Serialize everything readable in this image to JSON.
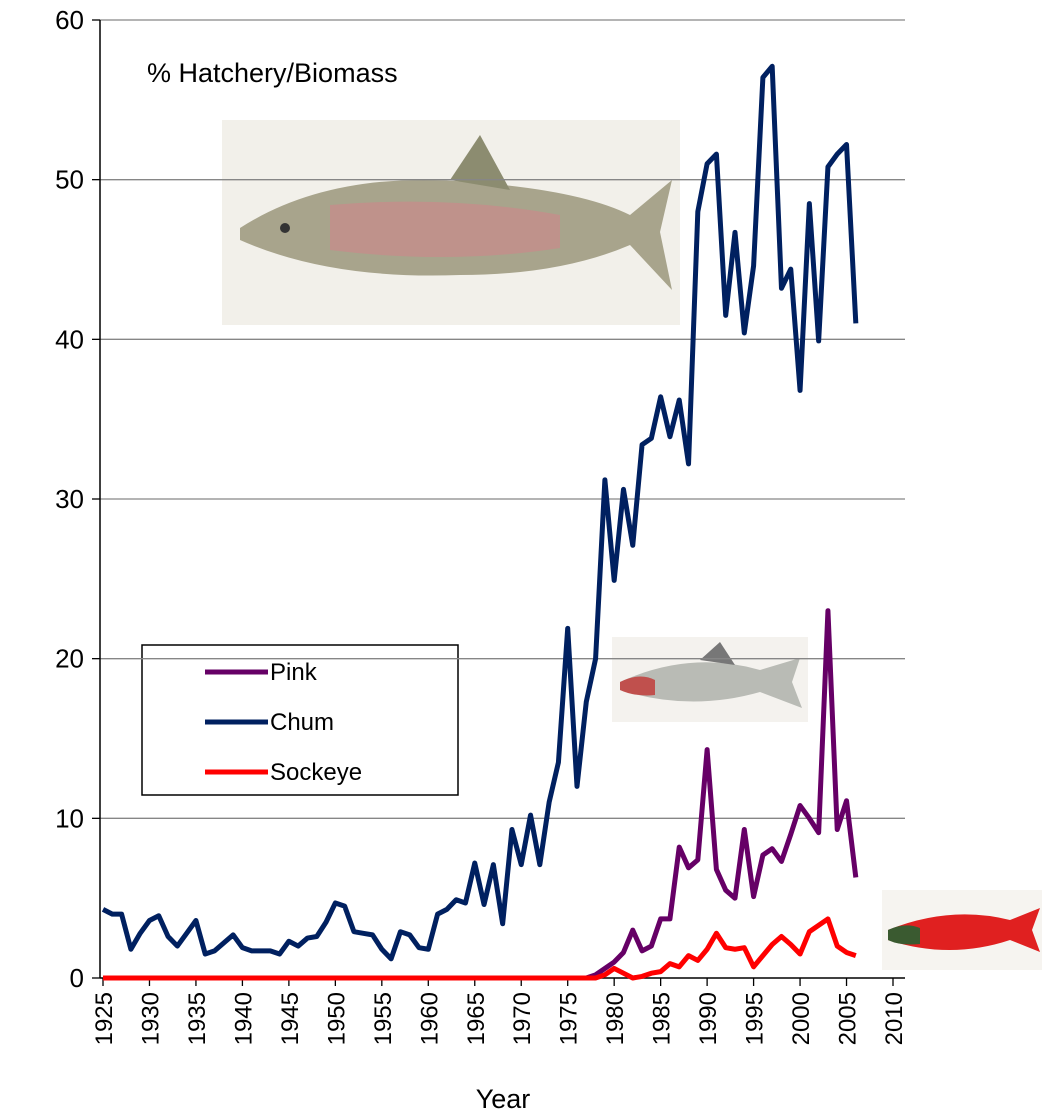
{
  "chart_data": {
    "type": "line",
    "annotation": "% Hatchery/Biomass",
    "x_label": "Year",
    "x": [
      1925,
      1926,
      1927,
      1928,
      1929,
      1930,
      1931,
      1932,
      1933,
      1934,
      1935,
      1936,
      1937,
      1938,
      1939,
      1940,
      1941,
      1942,
      1943,
      1944,
      1945,
      1946,
      1947,
      1948,
      1949,
      1950,
      1951,
      1952,
      1953,
      1954,
      1955,
      1956,
      1957,
      1958,
      1959,
      1960,
      1961,
      1962,
      1963,
      1964,
      1965,
      1966,
      1967,
      1968,
      1969,
      1970,
      1971,
      1972,
      1973,
      1974,
      1975,
      1976,
      1977,
      1978,
      1979,
      1980,
      1981,
      1982,
      1983,
      1984,
      1985,
      1986,
      1987,
      1988,
      1989,
      1990,
      1991,
      1992,
      1993,
      1994,
      1995,
      1996,
      1997,
      1998,
      1999,
      2000,
      2001,
      2002,
      2003,
      2004,
      2005,
      2006
    ],
    "series": [
      {
        "name": "Pink",
        "color": "#660066",
        "values": [
          0,
          0,
          0,
          0,
          0,
          0,
          0,
          0,
          0,
          0,
          0,
          0,
          0,
          0,
          0,
          0,
          0,
          0,
          0,
          0,
          0,
          0,
          0,
          0,
          0,
          0,
          0,
          0,
          0,
          0,
          0,
          0,
          0,
          0,
          0,
          0,
          0,
          0,
          0,
          0,
          0,
          0,
          0,
          0,
          0,
          0,
          0,
          0,
          0,
          0,
          0,
          0,
          0,
          0.2,
          0.6,
          1.0,
          1.6,
          3.0,
          1.7,
          2.0,
          3.7,
          3.7,
          8.2,
          6.9,
          7.4,
          14.3,
          6.8,
          5.5,
          5.0,
          9.3,
          5.1,
          7.7,
          8.1,
          7.3,
          9.0,
          10.8,
          10.0,
          9.1,
          23.0,
          9.3,
          11.1,
          6.3
        ]
      },
      {
        "name": "Chum",
        "color": "#002060",
        "values": [
          4.3,
          4.0,
          4.0,
          1.8,
          2.8,
          3.6,
          3.9,
          2.6,
          2.0,
          2.8,
          3.6,
          1.5,
          1.7,
          2.2,
          2.7,
          1.9,
          1.7,
          1.7,
          1.7,
          1.5,
          2.3,
          2.0,
          2.5,
          2.6,
          3.5,
          4.7,
          4.5,
          2.9,
          2.8,
          2.7,
          1.8,
          1.2,
          2.9,
          2.7,
          1.9,
          1.8,
          4.0,
          4.3,
          4.9,
          4.7,
          7.2,
          4.6,
          7.1,
          3.4,
          9.3,
          7.1,
          10.2,
          7.1,
          11.0,
          13.5,
          21.9,
          12.0,
          17.3,
          20.0,
          31.2,
          24.9,
          30.6,
          27.1,
          33.4,
          33.8,
          36.4,
          33.9,
          36.2,
          32.2,
          48.0,
          51.0,
          51.6,
          41.5,
          46.7,
          40.4,
          44.6,
          56.4,
          57.1,
          43.2,
          44.4,
          36.8,
          48.5,
          39.9,
          50.8,
          51.6,
          52.2,
          41.0
        ]
      },
      {
        "name": "Sockeye",
        "color": "#ff0000",
        "values": [
          0,
          0,
          0,
          0,
          0,
          0,
          0,
          0,
          0,
          0,
          0,
          0,
          0,
          0,
          0,
          0,
          0,
          0,
          0,
          0,
          0,
          0,
          0,
          0,
          0,
          0,
          0,
          0,
          0,
          0,
          0,
          0,
          0,
          0,
          0,
          0,
          0,
          0,
          0,
          0,
          0,
          0,
          0,
          0,
          0,
          0,
          0,
          0,
          0,
          0,
          0,
          0,
          0,
          0,
          0.2,
          0.6,
          0.3,
          0.0,
          0.1,
          0.3,
          0.4,
          0.9,
          0.7,
          1.4,
          1.1,
          1.8,
          2.8,
          1.9,
          1.8,
          1.9,
          0.7,
          1.4,
          2.1,
          2.6,
          2.1,
          1.5,
          2.9,
          3.3,
          3.7,
          2.0,
          1.6,
          1.4
        ]
      }
    ],
    "xlim": [
      1925,
      2010
    ],
    "xticks": [
      1925,
      1930,
      1935,
      1940,
      1945,
      1950,
      1955,
      1960,
      1965,
      1970,
      1975,
      1980,
      1985,
      1990,
      1995,
      2000,
      2005,
      2010
    ],
    "ylim": [
      0,
      60
    ],
    "yticks": [
      0,
      10,
      20,
      30,
      40,
      50,
      60
    ],
    "grid": true
  }
}
